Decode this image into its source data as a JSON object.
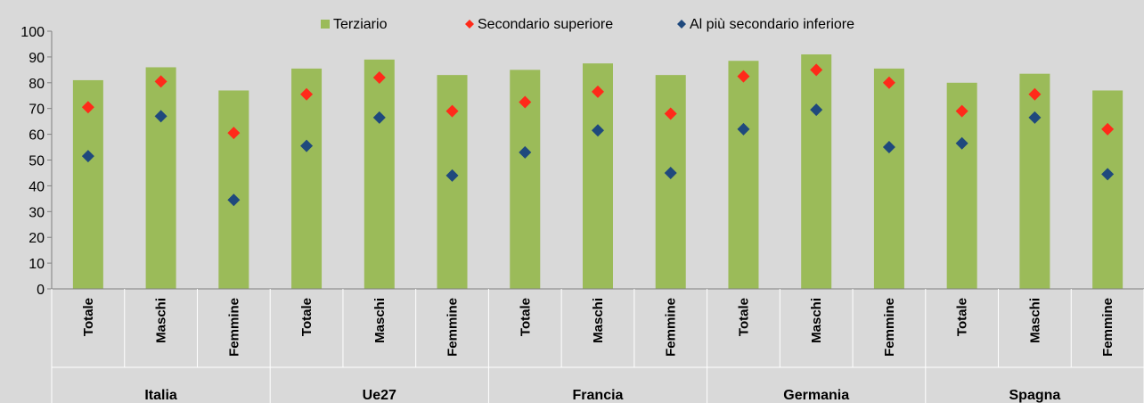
{
  "chart_data": {
    "type": "bar",
    "groups": [
      "Italia",
      "Ue27",
      "Francia",
      "Germania",
      "Spagna"
    ],
    "categories": [
      "Totale",
      "Maschi",
      "Femmine",
      "Totale",
      "Maschi",
      "Femmine",
      "Totale",
      "Maschi",
      "Femmine",
      "Totale",
      "Maschi",
      "Femmine",
      "Totale",
      "Maschi",
      "Femmine"
    ],
    "series": [
      {
        "name": "Terziario",
        "marker": "bar",
        "color": "#9bbb59",
        "values": [
          81,
          86,
          77,
          85.5,
          89,
          83,
          85,
          87.5,
          83,
          88.5,
          91,
          85.5,
          80,
          83.5,
          77
        ]
      },
      {
        "name": "Secondario superiore",
        "marker": "diamond",
        "color": "#ff2a1a",
        "values": [
          70.5,
          80.5,
          60.5,
          75.5,
          82,
          69,
          72.5,
          76.5,
          68,
          82.5,
          85,
          80,
          69,
          75.5,
          62
        ]
      },
      {
        "name": "Al più secondario inferiore",
        "marker": "diamond",
        "color": "#1f497d",
        "values": [
          51.5,
          67,
          34.5,
          55.5,
          66.5,
          44,
          53,
          61.5,
          45,
          62,
          69.5,
          55,
          56.5,
          66.5,
          44.5
        ]
      }
    ],
    "ylim": [
      0,
      100
    ],
    "yticks": [
      0,
      10,
      20,
      30,
      40,
      50,
      60,
      70,
      80,
      90,
      100
    ],
    "title": "",
    "xlabel": "",
    "ylabel": "",
    "legend": "top-center",
    "grid": false
  }
}
